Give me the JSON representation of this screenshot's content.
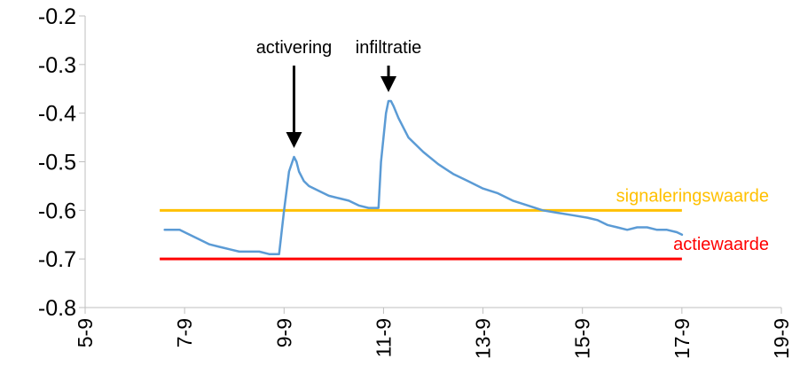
{
  "chart_data": {
    "type": "line",
    "title": "",
    "xlabel": "",
    "ylabel": "",
    "xlim": [
      5,
      19
    ],
    "ylim": [
      -0.8,
      -0.2
    ],
    "x_ticks": [
      {
        "value": 5,
        "label": "5-9"
      },
      {
        "value": 7,
        "label": "7-9"
      },
      {
        "value": 9,
        "label": "9-9"
      },
      {
        "value": 11,
        "label": "11-9"
      },
      {
        "value": 13,
        "label": "13-9"
      },
      {
        "value": 15,
        "label": "15-9"
      },
      {
        "value": 17,
        "label": "17-9"
      },
      {
        "value": 19,
        "label": "19-9"
      }
    ],
    "y_ticks": [
      {
        "value": -0.2,
        "label": "-0.2"
      },
      {
        "value": -0.3,
        "label": "-0.3"
      },
      {
        "value": -0.4,
        "label": "-0.4"
      },
      {
        "value": -0.5,
        "label": "-0.5"
      },
      {
        "value": -0.6,
        "label": "-0.6"
      },
      {
        "value": -0.7,
        "label": "-0.7"
      },
      {
        "value": -0.8,
        "label": "-0.8"
      }
    ],
    "grid": false,
    "legend": "none",
    "series": [
      {
        "color": "#5b9bd5",
        "x": [
          6.6,
          6.9,
          7.1,
          7.3,
          7.5,
          7.7,
          7.9,
          8.1,
          8.3,
          8.5,
          8.7,
          8.9,
          9.0,
          9.1,
          9.2,
          9.25,
          9.3,
          9.4,
          9.5,
          9.7,
          9.9,
          10.1,
          10.3,
          10.5,
          10.7,
          10.9,
          10.95,
          11.05,
          11.1,
          11.15,
          11.2,
          11.3,
          11.5,
          11.8,
          12.1,
          12.4,
          12.7,
          13.0,
          13.3,
          13.6,
          13.9,
          14.2,
          14.5,
          14.8,
          15.1,
          15.3,
          15.5,
          15.7,
          15.9,
          16.1,
          16.3,
          16.5,
          16.7,
          16.9,
          17.0
        ],
        "y": [
          -0.64,
          -0.64,
          -0.65,
          -0.66,
          -0.67,
          -0.675,
          -0.68,
          -0.685,
          -0.685,
          -0.685,
          -0.69,
          -0.69,
          -0.6,
          -0.52,
          -0.49,
          -0.5,
          -0.52,
          -0.54,
          -0.55,
          -0.56,
          -0.57,
          -0.575,
          -0.58,
          -0.59,
          -0.595,
          -0.595,
          -0.5,
          -0.4,
          -0.375,
          -0.375,
          -0.385,
          -0.41,
          -0.45,
          -0.48,
          -0.505,
          -0.525,
          -0.54,
          -0.555,
          -0.565,
          -0.58,
          -0.59,
          -0.6,
          -0.605,
          -0.61,
          -0.615,
          -0.62,
          -0.63,
          -0.635,
          -0.64,
          -0.635,
          -0.635,
          -0.64,
          -0.64,
          -0.645,
          -0.65
        ]
      }
    ],
    "reference_lines": [
      {
        "label": "signaleringswaarde",
        "y": -0.6,
        "x_start": 6.5,
        "x_end": 17.0,
        "color": "#ffc000"
      },
      {
        "label": "actiewaarde",
        "y": -0.7,
        "x_start": 6.5,
        "x_end": 17.0,
        "color": "#ff0000"
      }
    ],
    "annotations": [
      {
        "text": "activering",
        "x": 9.2,
        "y": -0.49,
        "arrow": true
      },
      {
        "text": "infiltratie",
        "x": 11.1,
        "y": -0.375,
        "arrow": true
      }
    ]
  }
}
